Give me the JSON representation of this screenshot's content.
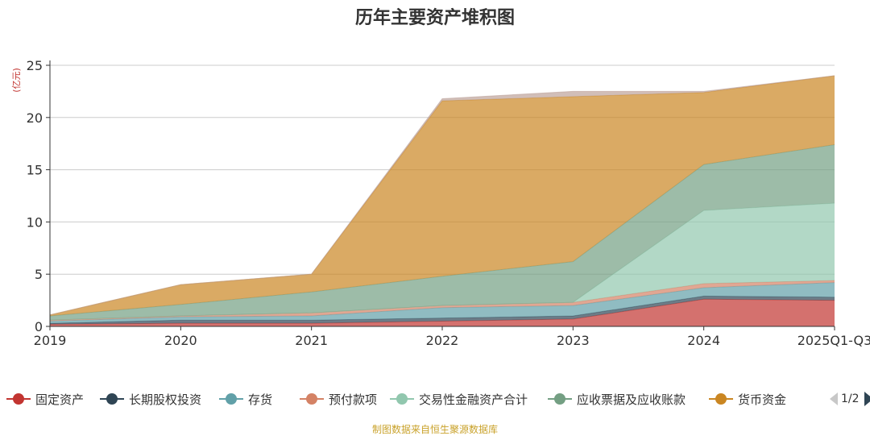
{
  "chart_data": {
    "type": "area",
    "stacked": true,
    "title": "历年主要资产堆积图",
    "ylabel": "(亿元)",
    "xlabel": "",
    "ylim": [
      0,
      25
    ],
    "yticks": [
      0,
      5,
      10,
      15,
      20,
      25
    ],
    "grid": true,
    "legend_position": "bottom",
    "categories": [
      "2019",
      "2020",
      "2021",
      "2022",
      "2023",
      "2024",
      "2025Q1-Q3"
    ],
    "series": [
      {
        "name": "固定资产",
        "color": "#c23531",
        "values": [
          0.2,
          0.3,
          0.3,
          0.5,
          0.7,
          2.6,
          2.5
        ]
      },
      {
        "name": "长期股权投资",
        "color": "#2f4554",
        "values": [
          0.1,
          0.3,
          0.3,
          0.3,
          0.3,
          0.3,
          0.3
        ]
      },
      {
        "name": "存货",
        "color": "#61a0a8",
        "values": [
          0.2,
          0.3,
          0.4,
          1.0,
          1.0,
          0.8,
          1.4
        ]
      },
      {
        "name": "预付款项",
        "color": "#d48265",
        "values": [
          0.1,
          0.1,
          0.3,
          0.2,
          0.3,
          0.4,
          0.2
        ]
      },
      {
        "name": "交易性金融资产合计",
        "color": "#91c7ae",
        "values": [
          0.0,
          0.0,
          0.0,
          0.0,
          0.0,
          7.0,
          7.4
        ]
      },
      {
        "name": "应收票据及应收账款",
        "color": "#749f83",
        "values": [
          0.4,
          1.1,
          2.0,
          2.8,
          3.9,
          4.4,
          5.6
        ]
      },
      {
        "name": "货币资金",
        "color": "#ca8622",
        "values": [
          0.1,
          1.9,
          1.7,
          16.8,
          15.8,
          6.9,
          6.6
        ]
      },
      {
        "name": "",
        "color": "#bda29a",
        "values": [
          0.0,
          0.0,
          0.0,
          0.2,
          0.5,
          0.1,
          0.0
        ]
      }
    ]
  },
  "legend": {
    "items": [
      {
        "label": "固定资产",
        "color": "#c23531"
      },
      {
        "label": "长期股权投资",
        "color": "#2f4554"
      },
      {
        "label": "存货",
        "color": "#61a0a8"
      },
      {
        "label": "预付款项",
        "color": "#d48265"
      },
      {
        "label": "交易性金融资产合计",
        "color": "#91c7ae"
      },
      {
        "label": "应收票据及应收账款",
        "color": "#749f83"
      },
      {
        "label": "货币资金",
        "color": "#ca8622"
      }
    ],
    "page_label": "1/2"
  },
  "source_note": "制图数据来自恒生聚源数据库"
}
